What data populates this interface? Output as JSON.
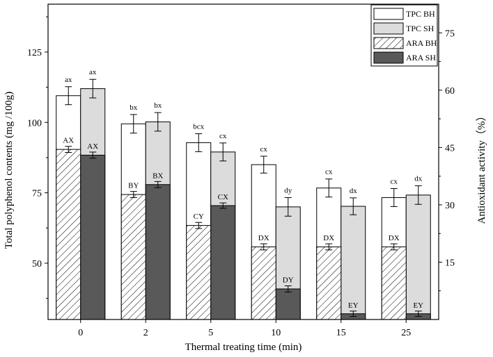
{
  "chart_data": {
    "type": "bar",
    "title": "",
    "xlabel": "Thermal treating time (min)",
    "ylabel": "Total polyphenol contents (mg /100g)",
    "y2label": "Antioxidant activity（%）",
    "categories": [
      "0",
      "2",
      "5",
      "10",
      "15",
      "25"
    ],
    "ylim": [
      30,
      142
    ],
    "y2lim": [
      0,
      82.5
    ],
    "yticks": [
      50,
      75,
      100,
      125
    ],
    "y2ticks": [
      15,
      30,
      45,
      60,
      75
    ],
    "legend_position": "top-right",
    "colors": {
      "tpc_bh": "#ffffff",
      "tpc_sh": "#dcdcdc",
      "ara_bh": "#ffffff",
      "ara_sh": "#595959",
      "stroke": "#000000"
    },
    "series": [
      {
        "name": "TPC BH",
        "axis": "left",
        "values": [
          109.5,
          99.5,
          92.8,
          85.0,
          76.7,
          73.3
        ],
        "errors": [
          3.2,
          3.3,
          3.2,
          3.0,
          3.2,
          3.2
        ],
        "labels": [
          "ax",
          "bx",
          "bcx",
          "cx",
          "cx",
          "cx"
        ]
      },
      {
        "name": "TPC SH",
        "axis": "left",
        "values": [
          112.0,
          100.2,
          89.5,
          70.0,
          70.2,
          74.2
        ],
        "errors": [
          3.3,
          3.3,
          3.2,
          3.3,
          3.0,
          3.3
        ],
        "labels": [
          "ax",
          "bx",
          "cx",
          "dy",
          "dx",
          "dx"
        ]
      },
      {
        "name": "ARA BH",
        "axis": "right",
        "values": [
          44.5,
          32.7,
          24.6,
          19.0,
          19.0,
          19.0
        ],
        "errors": [
          0.8,
          0.8,
          0.8,
          0.8,
          0.8,
          0.8
        ],
        "labels": [
          "AX",
          "BY",
          "CY",
          "DX",
          "DX",
          "DX"
        ]
      },
      {
        "name": "ARA SH",
        "axis": "right",
        "values": [
          43.0,
          35.3,
          29.8,
          8.0,
          1.5,
          1.5
        ],
        "errors": [
          0.8,
          0.8,
          0.7,
          0.8,
          0.7,
          0.7
        ],
        "labels": [
          "AX",
          "BX",
          "CX",
          "DY",
          "EY",
          "EY"
        ]
      }
    ]
  }
}
